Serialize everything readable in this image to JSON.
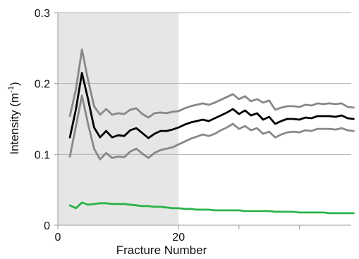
{
  "chart_data": {
    "type": "line",
    "xlabel": "Fracture Number",
    "ylabel_main": "Intensity (m",
    "ylabel_sup": "-1",
    "ylabel_close": ")",
    "xlim": [
      0,
      50
    ],
    "ylim": [
      0,
      0.3
    ],
    "xticks": [
      0,
      20
    ],
    "xtick_labels": [
      "0",
      "20"
    ],
    "x_minor_ticks": [
      30,
      40
    ],
    "yticks": [
      0,
      0.1,
      0.2,
      0.3
    ],
    "ytick_labels": [
      "0",
      "0.1",
      "0.2",
      "0.3"
    ],
    "grid": "horizontal",
    "shaded_region": {
      "x_start": 0,
      "x_end": 20,
      "color": "#e6e6e6"
    },
    "x": [
      2,
      3,
      4,
      5,
      6,
      7,
      8,
      9,
      10,
      11,
      12,
      13,
      14,
      15,
      16,
      17,
      18,
      19,
      20,
      21,
      22,
      23,
      24,
      25,
      26,
      27,
      28,
      29,
      30,
      31,
      32,
      33,
      34,
      35,
      36,
      37,
      38,
      39,
      40,
      41,
      42,
      43,
      44,
      45,
      46,
      47,
      48,
      49
    ],
    "series": [
      {
        "color": "#888888",
        "values": [
          0.154,
          0.192,
          0.248,
          0.205,
          0.168,
          0.156,
          0.164,
          0.156,
          0.158,
          0.157,
          0.163,
          0.165,
          0.157,
          0.152,
          0.158,
          0.159,
          0.158,
          0.16,
          0.161,
          0.165,
          0.168,
          0.17,
          0.172,
          0.17,
          0.173,
          0.177,
          0.181,
          0.185,
          0.178,
          0.182,
          0.175,
          0.178,
          0.173,
          0.176,
          0.163,
          0.166,
          0.168,
          0.168,
          0.167,
          0.17,
          0.169,
          0.172,
          0.171,
          0.172,
          0.171,
          0.172,
          0.167,
          0.166
        ]
      },
      {
        "color": "#000000",
        "values": [
          0.124,
          0.164,
          0.215,
          0.178,
          0.138,
          0.124,
          0.133,
          0.124,
          0.127,
          0.126,
          0.134,
          0.137,
          0.13,
          0.123,
          0.129,
          0.133,
          0.133,
          0.135,
          0.138,
          0.142,
          0.145,
          0.147,
          0.149,
          0.147,
          0.151,
          0.155,
          0.159,
          0.164,
          0.157,
          0.162,
          0.155,
          0.158,
          0.149,
          0.153,
          0.143,
          0.147,
          0.15,
          0.15,
          0.149,
          0.152,
          0.151,
          0.154,
          0.154,
          0.154,
          0.153,
          0.155,
          0.151,
          0.15
        ]
      },
      {
        "color": "#888888",
        "values": [
          0.097,
          0.14,
          0.183,
          0.143,
          0.108,
          0.093,
          0.102,
          0.095,
          0.097,
          0.096,
          0.104,
          0.108,
          0.101,
          0.095,
          0.102,
          0.106,
          0.108,
          0.11,
          0.114,
          0.118,
          0.122,
          0.125,
          0.128,
          0.126,
          0.129,
          0.134,
          0.138,
          0.143,
          0.136,
          0.14,
          0.134,
          0.137,
          0.129,
          0.132,
          0.124,
          0.128,
          0.131,
          0.132,
          0.131,
          0.134,
          0.133,
          0.136,
          0.136,
          0.136,
          0.135,
          0.137,
          0.134,
          0.133
        ]
      },
      {
        "color": "#2db34a",
        "values": [
          0.028,
          0.024,
          0.032,
          0.029,
          0.03,
          0.031,
          0.031,
          0.03,
          0.03,
          0.03,
          0.029,
          0.028,
          0.027,
          0.027,
          0.026,
          0.026,
          0.025,
          0.024,
          0.024,
          0.023,
          0.023,
          0.022,
          0.022,
          0.022,
          0.021,
          0.021,
          0.021,
          0.021,
          0.021,
          0.02,
          0.02,
          0.02,
          0.02,
          0.02,
          0.019,
          0.019,
          0.019,
          0.019,
          0.018,
          0.018,
          0.018,
          0.018,
          0.018,
          0.017,
          0.017,
          0.017,
          0.017,
          0.017
        ]
      }
    ]
  }
}
